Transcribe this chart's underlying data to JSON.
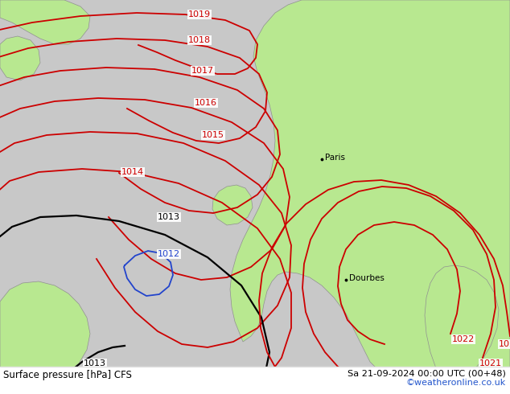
{
  "title_left": "Surface pressure [hPa] CFS",
  "title_right": "Sa 21-09-2024 00:00 UTC (00+48)",
  "credit": "©weatheronline.co.uk",
  "sea_color": "#c8c8c8",
  "land_green": "#b8e890",
  "coast_color": "#909090",
  "red": "#cc0000",
  "black": "#000000",
  "blue": "#2244cc",
  "credit_color": "#2255cc"
}
